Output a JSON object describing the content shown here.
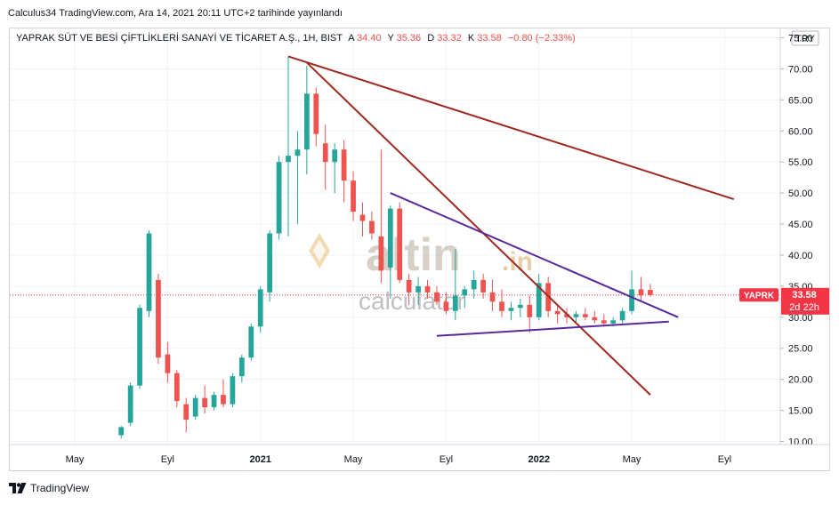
{
  "header": {
    "publish_line": "Calculus34 TradingView.com, Ara 14, 2021 20:11 UTC+2 tarihinde yayınlandı"
  },
  "legend": {
    "symbol": "YAPRAK SÜT VE BESİ ÇİFTLİKLERİ SANAYİ VE TİCARET A.Ş., 1H, BIST",
    "open_label": "A",
    "open": "34.40",
    "high_label": "Y",
    "high": "35.36",
    "low_label": "D",
    "low": "33.32",
    "close_label": "K",
    "close": "33.58",
    "change": "−0.80 (−2.33%)"
  },
  "currency": "TRY",
  "price_tag": {
    "symbol": "YAPRK",
    "price": "33.58",
    "countdown": "2d 22h"
  },
  "watermark": {
    "word1": "altin",
    "word2": ".in",
    "word3": "calculator"
  },
  "footer": {
    "brand": "TradingView"
  },
  "colors": {
    "up": "#26a69a",
    "down": "#ef5350",
    "trend_red": "#a0281e",
    "trend_purple": "#5a2a9b",
    "tag": "#f23645"
  },
  "chart_data": {
    "type": "candlestick",
    "x_axis_labels": [
      "May",
      "Eyl",
      "2021",
      "May",
      "Eyl",
      "2022",
      "May",
      "Eyl"
    ],
    "y_axis_labels": [
      "75.00",
      "70.00",
      "65.00",
      "60.00",
      "55.00",
      "50.00",
      "45.00",
      "40.00",
      "35.00",
      "30.00",
      "25.00",
      "20.00",
      "15.00",
      "10.00"
    ],
    "ylim": [
      9.5,
      76.5
    ],
    "x_index_range": [
      -12,
      71
    ],
    "x_label_index": [
      -5,
      5,
      15,
      25,
      35,
      45,
      55,
      65
    ],
    "candles": [
      [
        0,
        11,
        12.5,
        10.5,
        12.3
      ],
      [
        1,
        13,
        19.5,
        12.5,
        19.0
      ],
      [
        2,
        19,
        32.0,
        18.5,
        31.5
      ],
      [
        3,
        31,
        44.0,
        30.0,
        43.5
      ],
      [
        4,
        36,
        37.0,
        22.5,
        23.5
      ],
      [
        5,
        24,
        26.0,
        19.5,
        21.0
      ],
      [
        6,
        21,
        21.5,
        15.5,
        16.5
      ],
      [
        7,
        16,
        17.0,
        11.5,
        13.5
      ],
      [
        8,
        14,
        17.5,
        13.5,
        17.0
      ],
      [
        9,
        17,
        19.0,
        14.5,
        15.5
      ],
      [
        10,
        15.5,
        18.0,
        15.0,
        17.5
      ],
      [
        11,
        17.5,
        20.0,
        15.5,
        16.0
      ],
      [
        12,
        16,
        21.0,
        15.5,
        20.5
      ],
      [
        13,
        20.5,
        24.0,
        19.5,
        23.5
      ],
      [
        14,
        23.5,
        29.0,
        23.0,
        28.5
      ],
      [
        15,
        28.5,
        35.0,
        27.5,
        34.5
      ],
      [
        16,
        34,
        44.0,
        32.5,
        43.5
      ],
      [
        17,
        43.5,
        56.0,
        42.5,
        55.0
      ],
      [
        18,
        55,
        72.0,
        43.0,
        56.0
      ],
      [
        19,
        56,
        60.0,
        45.0,
        57.0
      ],
      [
        20,
        57,
        70.5,
        53.0,
        66.0
      ],
      [
        21,
        66,
        67.0,
        57.5,
        59.5
      ],
      [
        22,
        58,
        61.0,
        50.5,
        55.0
      ],
      [
        23,
        55,
        58.0,
        50.0,
        57.0
      ],
      [
        24,
        57,
        58.5,
        48.5,
        52.0
      ],
      [
        25,
        52,
        53.5,
        45.5,
        47.0
      ],
      [
        26,
        46.5,
        48.5,
        43.0,
        45.5
      ],
      [
        27,
        45.5,
        47.0,
        42.5,
        43.5
      ],
      [
        28,
        43,
        57.0,
        35.5,
        37.5
      ],
      [
        29,
        38,
        48.0,
        33.0,
        47.5
      ],
      [
        30,
        47.5,
        48.5,
        35.5,
        36.0
      ],
      [
        31,
        36,
        37.0,
        32.0,
        34.0
      ],
      [
        32,
        34,
        36.5,
        32.0,
        35.0
      ],
      [
        33,
        35,
        36.0,
        33.0,
        34.0
      ],
      [
        34,
        34,
        35.0,
        32.0,
        32.5
      ],
      [
        35,
        32.5,
        34.0,
        30.5,
        31.0
      ],
      [
        36,
        31,
        41.0,
        29.5,
        33.5
      ],
      [
        37,
        33.5,
        35.0,
        31.5,
        34.5
      ],
      [
        38,
        34.5,
        37.5,
        33.0,
        36.0
      ],
      [
        39,
        36,
        37.0,
        33.0,
        34.0
      ],
      [
        40,
        34,
        36.0,
        31.0,
        32.5
      ],
      [
        41,
        32.5,
        34.5,
        30.0,
        31.0
      ],
      [
        42,
        31,
        32.5,
        29.5,
        31.5
      ],
      [
        43,
        31.5,
        33.0,
        30.0,
        32.0
      ],
      [
        44,
        32,
        33.5,
        27.5,
        30.0
      ],
      [
        45,
        30,
        37.0,
        29.5,
        35.5
      ],
      [
        46,
        35.5,
        36.5,
        30.0,
        31.0
      ],
      [
        47,
        31,
        32.0,
        29.0,
        30.5
      ],
      [
        48,
        30.5,
        31.5,
        29.0,
        30.0
      ],
      [
        49,
        30,
        31.0,
        29.0,
        30.5
      ],
      [
        50,
        30.5,
        31.5,
        29.5,
        30.0
      ],
      [
        51,
        30,
        31.0,
        29.0,
        29.5
      ],
      [
        52,
        29.5,
        30.5,
        28.5,
        29.0
      ],
      [
        53,
        29,
        30.0,
        28.5,
        29.5
      ],
      [
        54,
        29.5,
        31.5,
        29.0,
        31.0
      ],
      [
        55,
        31,
        37.5,
        30.5,
        34.5
      ],
      [
        56,
        34.5,
        36.5,
        32.5,
        33.5
      ],
      [
        57,
        34.4,
        35.36,
        33.32,
        33.58
      ]
    ],
    "trend_lines": [
      {
        "color": "red",
        "from": [
          18,
          72.0
        ],
        "to": [
          66,
          49.0
        ]
      },
      {
        "color": "red",
        "from": [
          20,
          71.0
        ],
        "to": [
          57,
          17.5
        ]
      },
      {
        "color": "purple",
        "from": [
          29,
          50.0
        ],
        "to": [
          60,
          30.0
        ]
      },
      {
        "color": "purple",
        "from": [
          34,
          27.0
        ],
        "to": [
          59,
          29.3
        ]
      }
    ],
    "last_price": 33.58
  }
}
